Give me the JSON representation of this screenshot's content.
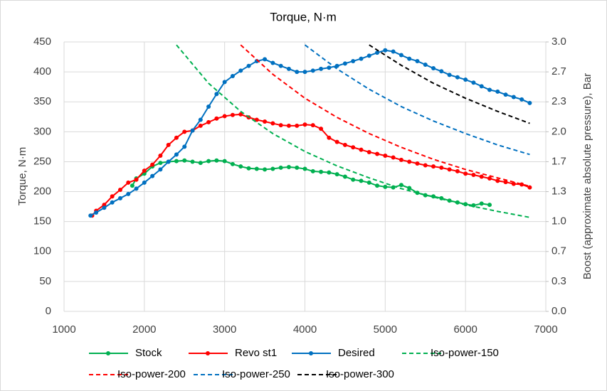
{
  "chart_data": {
    "type": "line",
    "title": "Torque, N·m",
    "y_label": "Torque, N·m",
    "y2_label": "Boost (approximate absolute pressure), Bar",
    "xlim": [
      1000,
      7000
    ],
    "xticks": [
      1000,
      2000,
      3000,
      4000,
      5000,
      6000,
      7000
    ],
    "ylim": [
      0,
      450
    ],
    "yticks": [
      0,
      50,
      100,
      150,
      200,
      250,
      300,
      350,
      400,
      450
    ],
    "y2lim": [
      0,
      3
    ],
    "y2ticks": [
      {
        "value": 0,
        "label": "0.0"
      },
      {
        "value": 0.3333,
        "label": "0.3"
      },
      {
        "value": 0.6667,
        "label": "0.7"
      },
      {
        "value": 1,
        "label": "1.0"
      },
      {
        "value": 1.3333,
        "label": "1.3"
      },
      {
        "value": 1.6667,
        "label": "1.7"
      },
      {
        "value": 2,
        "label": "2.0"
      },
      {
        "value": 2.3333,
        "label": "2.3"
      },
      {
        "value": 2.6667,
        "label": "2.7"
      },
      {
        "value": 3,
        "label": "3.0"
      }
    ],
    "grid": true,
    "legend": "bottom",
    "series": [
      {
        "name": "Stock",
        "color": "#00b050",
        "line_style": "solid",
        "markers": true,
        "x": [
          1850,
          1900,
          2000,
          2100,
          2200,
          2300,
          2400,
          2500,
          2600,
          2700,
          2800,
          2900,
          3000,
          3100,
          3200,
          3300,
          3400,
          3500,
          3600,
          3700,
          3800,
          3900,
          4000,
          4100,
          4200,
          4300,
          4400,
          4500,
          4600,
          4700,
          4800,
          4900,
          5000,
          5100,
          5200,
          5300,
          5400,
          5500,
          5600,
          5700,
          5800,
          5900,
          6000,
          6100,
          6200,
          6300
        ],
        "values": [
          210,
          222,
          230,
          242,
          248,
          250,
          251,
          252,
          250,
          248,
          251,
          252,
          251,
          246,
          242,
          239,
          238,
          237,
          238,
          240,
          241,
          240,
          238,
          234,
          233,
          232,
          229,
          225,
          220,
          218,
          215,
          210,
          208,
          207,
          211,
          206,
          198,
          194,
          192,
          189,
          185,
          182,
          179,
          177,
          180,
          178
        ]
      },
      {
        "name": "Revo st1",
        "color": "#ff0000",
        "line_style": "solid",
        "markers": true,
        "x": [
          1350,
          1400,
          1500,
          1600,
          1700,
          1800,
          1900,
          2000,
          2100,
          2200,
          2300,
          2400,
          2500,
          2600,
          2700,
          2800,
          2900,
          3000,
          3100,
          3200,
          3300,
          3400,
          3500,
          3600,
          3700,
          3800,
          3900,
          4000,
          4100,
          4200,
          4300,
          4400,
          4500,
          4600,
          4700,
          4800,
          4900,
          5000,
          5100,
          5200,
          5300,
          5400,
          5500,
          5600,
          5700,
          5800,
          5900,
          6000,
          6100,
          6200,
          6300,
          6400,
          6500,
          6600,
          6700,
          6800
        ],
        "values": [
          160,
          168,
          178,
          192,
          203,
          215,
          220,
          235,
          245,
          260,
          278,
          290,
          300,
          302,
          310,
          316,
          322,
          326,
          328,
          329,
          324,
          320,
          317,
          314,
          311,
          310,
          310,
          312,
          311,
          305,
          290,
          283,
          278,
          274,
          270,
          266,
          263,
          260,
          257,
          253,
          250,
          247,
          244,
          242,
          240,
          237,
          234,
          230,
          228,
          225,
          222,
          218,
          216,
          213,
          212,
          207
        ]
      },
      {
        "name": "Desired",
        "color": "#0070c0",
        "line_style": "solid",
        "markers": true,
        "x": [
          1330,
          1400,
          1500,
          1600,
          1700,
          1800,
          1900,
          2000,
          2100,
          2200,
          2300,
          2400,
          2500,
          2600,
          2700,
          2800,
          2900,
          3000,
          3100,
          3200,
          3300,
          3400,
          3500,
          3600,
          3700,
          3800,
          3900,
          4000,
          4100,
          4200,
          4300,
          4400,
          4500,
          4600,
          4700,
          4800,
          4900,
          5000,
          5100,
          5200,
          5300,
          5400,
          5500,
          5600,
          5700,
          5800,
          5900,
          6000,
          6100,
          6200,
          6300,
          6400,
          6500,
          6600,
          6700,
          6800
        ],
        "values": [
          160,
          165,
          173,
          182,
          189,
          196,
          205,
          215,
          226,
          237,
          250,
          262,
          275,
          302,
          320,
          342,
          363,
          383,
          393,
          402,
          410,
          418,
          421,
          415,
          410,
          405,
          400,
          400,
          402,
          405,
          407,
          410,
          414,
          418,
          422,
          427,
          432,
          436,
          434,
          428,
          422,
          418,
          412,
          406,
          401,
          395,
          391,
          387,
          382,
          376,
          370,
          367,
          362,
          358,
          354,
          348
        ]
      },
      {
        "name": "Iso-power-150",
        "color": "#00b050",
        "line_style": "dashed",
        "markers": false,
        "x": [
          2400,
          2800,
          3200,
          3600,
          4000,
          4400,
          4800,
          5200,
          5600,
          6000,
          6400,
          6800
        ],
        "values": [
          445,
          381,
          334,
          297,
          267,
          243,
          223,
          205,
          191,
          178,
          167,
          157
        ]
      },
      {
        "name": "Iso-power-200",
        "color": "#ff0000",
        "line_style": "dashed",
        "markers": false,
        "x": [
          3200,
          3600,
          4000,
          4400,
          4800,
          5200,
          5600,
          6000,
          6400,
          6800
        ],
        "values": [
          445,
          396,
          356,
          324,
          297,
          274,
          254,
          237,
          223,
          209
        ]
      },
      {
        "name": "Iso-power-250",
        "color": "#0070c0",
        "line_style": "dashed",
        "markers": false,
        "x": [
          4000,
          4400,
          4800,
          5200,
          5600,
          6000,
          6400,
          6800
        ],
        "values": [
          445,
          405,
          371,
          342,
          318,
          297,
          278,
          262
        ]
      },
      {
        "name": "Iso-power-300",
        "color": "#000000",
        "line_style": "dashed",
        "markers": false,
        "x": [
          4800,
          5200,
          5600,
          6000,
          6400,
          6800
        ],
        "values": [
          445,
          411,
          381,
          356,
          334,
          314
        ]
      }
    ]
  }
}
